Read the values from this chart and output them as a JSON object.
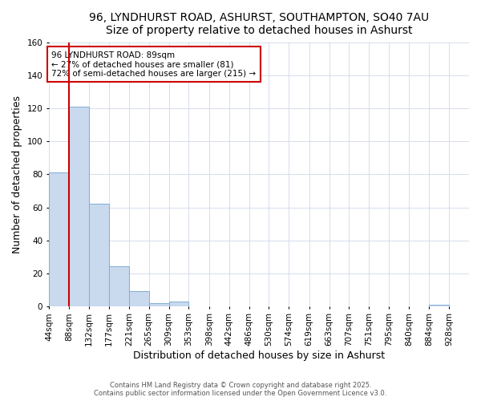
{
  "title_line1": "96, LYNDHURST ROAD, ASHURST, SOUTHAMPTON, SO40 7AU",
  "title_line2": "Size of property relative to detached houses in Ashurst",
  "xlabel": "Distribution of detached houses by size in Ashurst",
  "ylabel": "Number of detached properties",
  "bar_values": [
    81,
    121,
    62,
    24,
    9,
    2,
    3,
    0,
    0,
    0,
    0,
    0,
    0,
    0,
    0,
    0,
    0,
    0,
    0,
    1,
    0
  ],
  "bin_edges": [
    44,
    88,
    132,
    177,
    221,
    265,
    309,
    353,
    398,
    442,
    486,
    530,
    574,
    619,
    663,
    707,
    751,
    795,
    840,
    884,
    928,
    972
  ],
  "x_tick_labels": [
    "44sqm",
    "88sqm",
    "132sqm",
    "177sqm",
    "221sqm",
    "265sqm",
    "309sqm",
    "353sqm",
    "398sqm",
    "442sqm",
    "486sqm",
    "530sqm",
    "574sqm",
    "619sqm",
    "663sqm",
    "707sqm",
    "751sqm",
    "795sqm",
    "840sqm",
    "884sqm",
    "928sqm"
  ],
  "ylim": [
    0,
    160
  ],
  "bar_color": "#c9d9ee",
  "bar_edge_color": "#7eadd4",
  "red_line_x": 89,
  "annotation_text": "96 LYNDHURST ROAD: 89sqm\n← 27% of detached houses are smaller (81)\n72% of semi-detached houses are larger (215) →",
  "annotation_box_color": "#ffffff",
  "annotation_border_color": "#cc0000",
  "footer_line1": "Contains HM Land Registry data © Crown copyright and database right 2025.",
  "footer_line2": "Contains public sector information licensed under the Open Government Licence v3.0.",
  "plot_bg_color": "#ffffff",
  "fig_bg_color": "#ffffff",
  "grid_color": "#d0d8e8",
  "title_fontsize": 10,
  "subtitle_fontsize": 9,
  "axis_label_fontsize": 9,
  "tick_fontsize": 7.5,
  "footer_fontsize": 6
}
